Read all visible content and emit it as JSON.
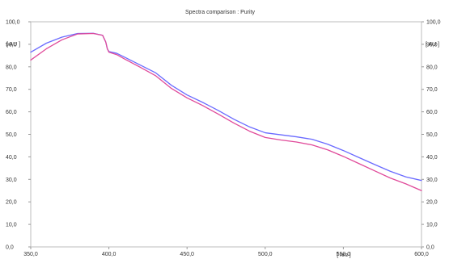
{
  "chart_data": {
    "type": "line",
    "title": "Spectra comparison : Purity",
    "y_unit_label": "[ AU ]",
    "x_unit_label": "[ nm ]",
    "xlim": [
      350,
      600
    ],
    "ylim": [
      0,
      100
    ],
    "x_ticks": [
      "350,0",
      "400,0",
      "450,0",
      "500,0",
      "550,0",
      "600,0"
    ],
    "y_ticks": [
      "0,0",
      "10,0",
      "20,0",
      "30,0",
      "40,0",
      "50,0",
      "60,0",
      "70,0",
      "80,0",
      "90,0",
      "100,0"
    ],
    "grid": false,
    "series": [
      {
        "color": "#6a6aff",
        "points": [
          [
            350,
            86.5
          ],
          [
            360,
            90.5
          ],
          [
            370,
            93.2
          ],
          [
            380,
            94.8
          ],
          [
            390,
            94.9
          ],
          [
            396,
            94.0
          ],
          [
            398,
            91.0
          ],
          [
            399,
            88.0
          ],
          [
            400,
            86.8
          ],
          [
            405,
            86.0
          ],
          [
            410,
            84.3
          ],
          [
            420,
            80.8
          ],
          [
            430,
            77.3
          ],
          [
            440,
            71.8
          ],
          [
            450,
            67.5
          ],
          [
            460,
            64.2
          ],
          [
            470,
            60.6
          ],
          [
            480,
            56.7
          ],
          [
            490,
            53.3
          ],
          [
            500,
            50.7
          ],
          [
            510,
            49.8
          ],
          [
            520,
            48.9
          ],
          [
            530,
            47.8
          ],
          [
            540,
            45.6
          ],
          [
            550,
            42.8
          ],
          [
            560,
            39.7
          ],
          [
            570,
            36.6
          ],
          [
            580,
            33.6
          ],
          [
            590,
            31.1
          ],
          [
            600,
            29.5
          ]
        ]
      },
      {
        "color": "#e04a9a",
        "points": [
          [
            350,
            83.0
          ],
          [
            360,
            88.0
          ],
          [
            370,
            92.0
          ],
          [
            380,
            94.6
          ],
          [
            390,
            94.8
          ],
          [
            396,
            94.0
          ],
          [
            398,
            91.0
          ],
          [
            399,
            88.0
          ],
          [
            400,
            86.5
          ],
          [
            405,
            85.4
          ],
          [
            410,
            83.5
          ],
          [
            420,
            79.8
          ],
          [
            430,
            76.0
          ],
          [
            440,
            70.4
          ],
          [
            450,
            66.2
          ],
          [
            460,
            62.8
          ],
          [
            470,
            59.0
          ],
          [
            480,
            55.0
          ],
          [
            490,
            51.4
          ],
          [
            500,
            48.6
          ],
          [
            510,
            47.5
          ],
          [
            520,
            46.6
          ],
          [
            530,
            45.3
          ],
          [
            540,
            43.1
          ],
          [
            550,
            40.2
          ],
          [
            560,
            37.0
          ],
          [
            570,
            33.8
          ],
          [
            580,
            30.6
          ],
          [
            590,
            28.0
          ],
          [
            600,
            25.0
          ]
        ]
      }
    ]
  }
}
